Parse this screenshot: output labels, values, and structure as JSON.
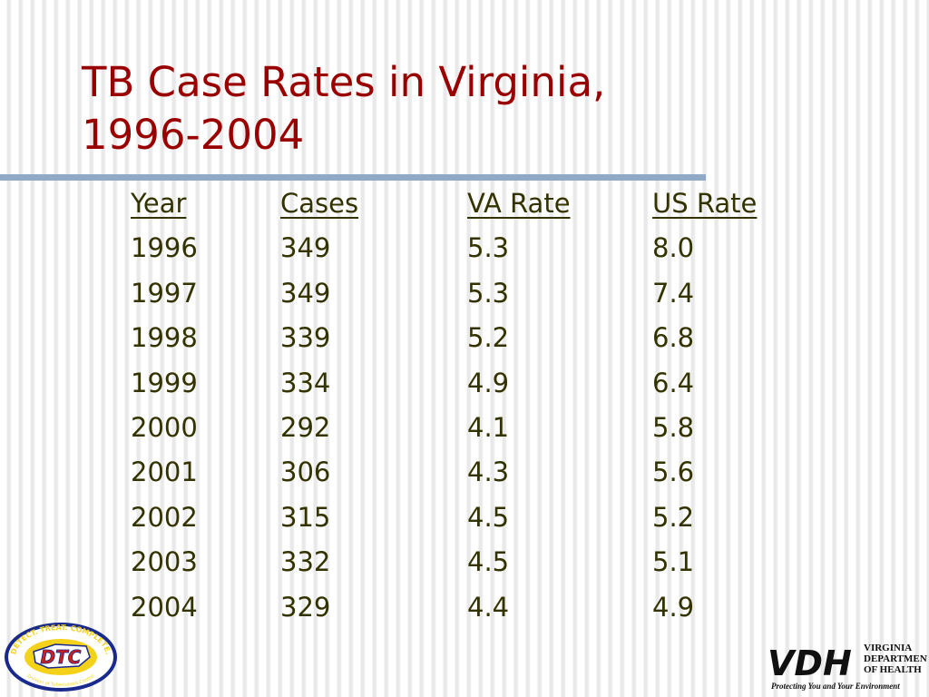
{
  "slide": {
    "title_line1": "TB Case Rates in Virginia,",
    "title_line2": "1996-2004"
  },
  "table": {
    "headers": [
      "Year",
      "Cases",
      "VA Rate",
      "US Rate"
    ],
    "rows": [
      [
        "1996",
        "349",
        "5.3",
        "8.0"
      ],
      [
        "1997",
        "349",
        "5.3",
        "7.4"
      ],
      [
        "1998",
        "339",
        "5.2",
        "6.8"
      ],
      [
        "1999",
        "334",
        "4.9",
        "6.4"
      ],
      [
        "2000",
        "292",
        "4.1",
        "5.8"
      ],
      [
        "2001",
        "306",
        "4.3",
        "5.6"
      ],
      [
        "2002",
        "315",
        "4.5",
        "5.2"
      ],
      [
        "2003",
        "332",
        "4.5",
        "5.1"
      ],
      [
        "2004",
        "329",
        "4.4",
        "4.9"
      ]
    ]
  },
  "logos": {
    "dtc": {
      "mark": "DTC",
      "ring_text": "DETECT. TREAT. COMPLETE.",
      "sub_text": "Division of Tuberculosis Control"
    },
    "vdh": {
      "mark": "VDH",
      "line1": "VIRGINIA",
      "line2": "DEPARTMENT",
      "line3": "OF HEALTH",
      "tagline": "Protecting You and Your Environment"
    }
  },
  "colors": {
    "title": "#990000",
    "body_text": "#333300",
    "rule": "#8fa9c6",
    "dtc_ring": "#1a2a8c",
    "dtc_fill": "#f4d21a",
    "dtc_mark": "#cc1f1f"
  }
}
